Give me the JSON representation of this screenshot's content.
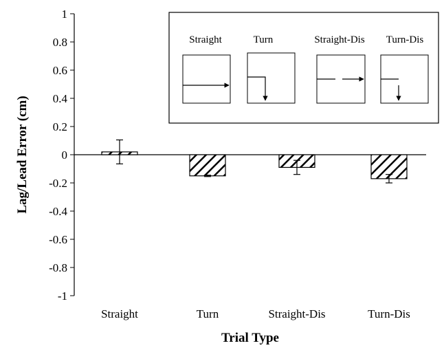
{
  "chart_data": {
    "type": "bar",
    "categories": [
      "Straight",
      "Turn",
      "Straight-Dis",
      "Turn-Dis"
    ],
    "values": [
      0.02,
      -0.15,
      -0.09,
      -0.17
    ],
    "error": [
      0.085,
      0.005,
      0.05,
      0.03
    ],
    "xlabel": "Trial Type",
    "ylabel": "Lag/Lead Error (cm)",
    "ylim": [
      -1,
      1
    ],
    "yticks": [
      "1",
      "0.8",
      "0.6",
      "0.4",
      "0.2",
      "0",
      "-0.2",
      "-0.4",
      "-0.6",
      "-0.8",
      "-1"
    ],
    "grid": false,
    "bar_fill": "diagonal-hatch",
    "colors": {
      "ink": "#000000",
      "background": "#ffffff"
    },
    "inset": {
      "labels": [
        "Straight",
        "Turn",
        "Straight-Dis",
        "Turn-Dis"
      ],
      "paths": [
        "straight-arrow",
        "turn-arrow",
        "dashed-straight-arrow",
        "dashed-turn-arrow"
      ]
    }
  }
}
